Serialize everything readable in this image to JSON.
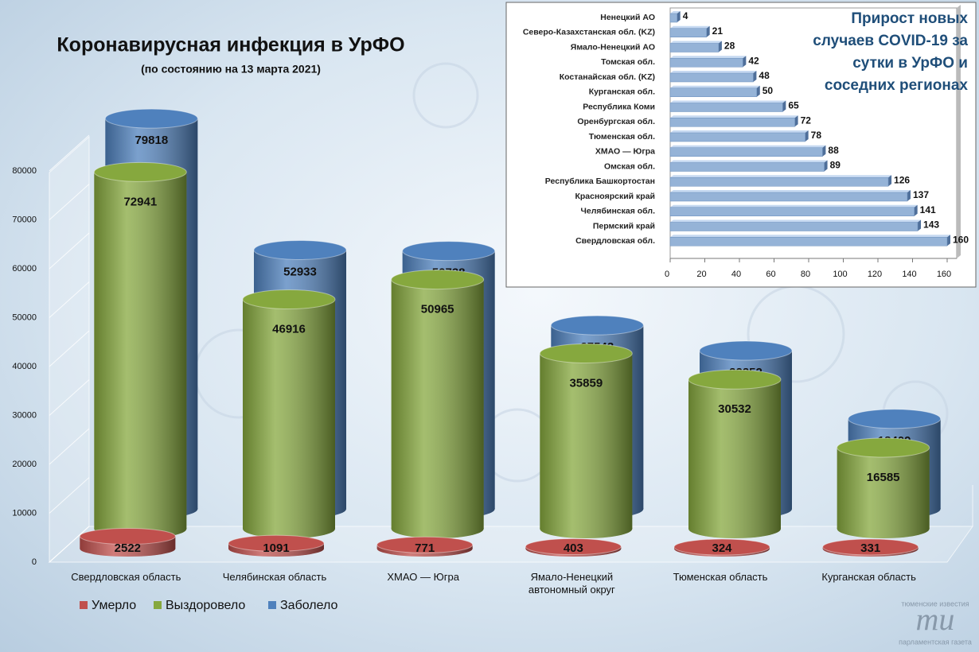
{
  "chart_data": [
    {
      "type": "bar",
      "title": "Коронавирусная инфекция в УрФО",
      "subtitle": "(по состоянию на 13 марта 2021)",
      "categories": [
        "Свердловская область",
        "Челябинская область",
        "ХМАО — Югра",
        "Ямало-Ненецкий автономный округ",
        "Тюменская область",
        "Курганская область"
      ],
      "series": [
        {
          "name": "Умерло",
          "color": "#c0504d",
          "values": [
            2522,
            1091,
            771,
            403,
            324,
            331
          ]
        },
        {
          "name": "Выздоровело",
          "color": "#86a83e",
          "values": [
            72941,
            46916,
            50965,
            35859,
            30532,
            16585
          ]
        },
        {
          "name": "Заболело",
          "color": "#4f81bd",
          "values": [
            79818,
            52933,
            52738,
            37543,
            32352,
            18409
          ]
        }
      ],
      "ylim": [
        0,
        80000
      ],
      "yticks": [
        0,
        10000,
        20000,
        30000,
        40000,
        50000,
        60000,
        70000,
        80000
      ],
      "grid": true,
      "legend": "bottom"
    },
    {
      "type": "barh",
      "title": "Прирост новых случаев COVID-19 за сутки в УрФО и соседних регионах",
      "categories": [
        "Ненецкий АО",
        "Северо-Казахстанская обл. (KZ)",
        "Ямало-Ненецкий АО",
        "Томская обл.",
        "Костанайская обл. (KZ)",
        "Курганская обл.",
        "Республика Коми",
        "Оренбургская обл.",
        "Тюменская обл.",
        "ХМАО — Югра",
        "Омская обл.",
        "Республика Башкортостан",
        "Красноярский край",
        "Челябинская обл.",
        "Пермский край",
        "Свердловская обл."
      ],
      "values": [
        4,
        21,
        28,
        42,
        48,
        50,
        65,
        72,
        78,
        88,
        89,
        126,
        137,
        141,
        143,
        160
      ],
      "color": "#95b3d7",
      "xlim": [
        0,
        160
      ],
      "xticks": [
        0,
        20,
        40,
        60,
        80,
        100,
        120,
        140,
        160
      ]
    }
  ],
  "watermark": {
    "top": "тюменские известия",
    "logo": "ти",
    "bottom": "парламентская газета"
  }
}
